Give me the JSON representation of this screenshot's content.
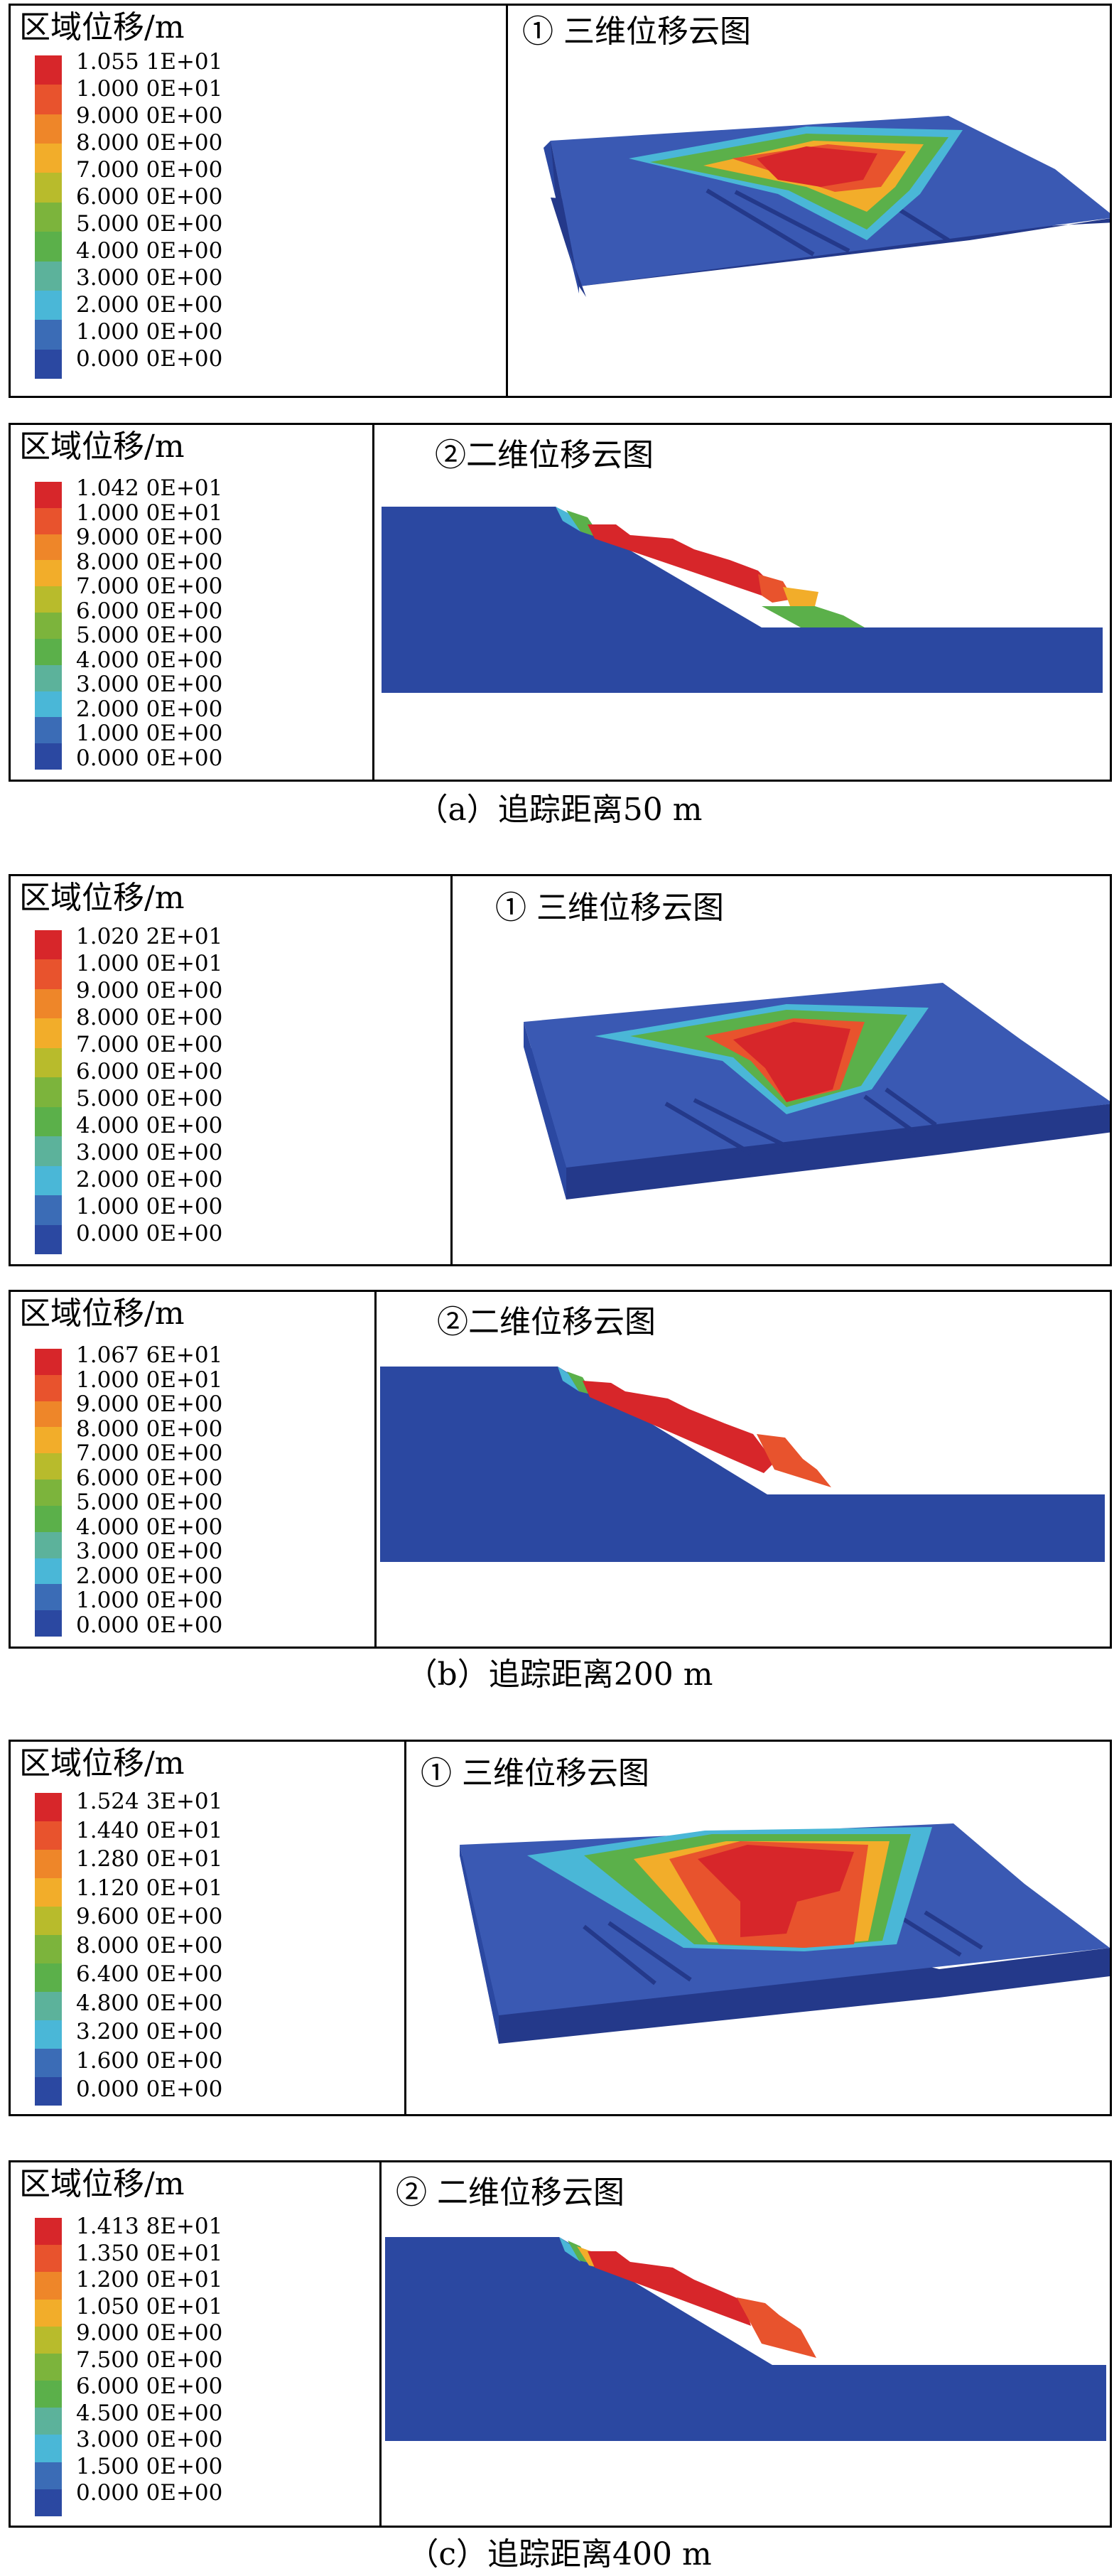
{
  "legend_title": "区域位移/m",
  "colorscale": [
    "#d7262a",
    "#e8532d",
    "#ee8629",
    "#f2ad2a",
    "#b8bb2c",
    "#7cb43c",
    "#5bb04a",
    "#5cb29b",
    "#4ab7d7",
    "#3b6cb6",
    "#2b48a1"
  ],
  "colors": {
    "blue": "#2b48a1",
    "blue_top": "#3a59b3",
    "blue_dark": "#24398a",
    "blue_light": "#4a6ec0",
    "cyan": "#4ab7d7",
    "green": "#5bb04a",
    "yellow": "#f2ad2a",
    "orange": "#e8532d",
    "red": "#d7262a"
  },
  "groups": [
    {
      "caption": "（a）追踪距离50 m",
      "panels": [
        {
          "title": "① 三维位移云图",
          "labels": [
            "1.055 1E+01",
            "1.000 0E+01",
            "9.000 0E+00",
            "8.000 0E+00",
            "7.000 0E+00",
            "6.000 0E+00",
            "5.000 0E+00",
            "4.000 0E+00",
            "3.000 0E+00",
            "2.000 0E+00",
            "1.000 0E+00",
            "0.000 0E+00"
          ]
        },
        {
          "title": "②二维位移云图",
          "labels": [
            "1.042 0E+01",
            "1.000 0E+01",
            "9.000 0E+00",
            "8.000 0E+00",
            "7.000 0E+00",
            "6.000 0E+00",
            "5.000 0E+00",
            "4.000 0E+00",
            "3.000 0E+00",
            "2.000 0E+00",
            "1.000 0E+00",
            "0.000 0E+00"
          ]
        }
      ]
    },
    {
      "caption": "（b）追踪距离200 m",
      "panels": [
        {
          "title": "① 三维位移云图",
          "labels": [
            "1.020 2E+01",
            "1.000 0E+01",
            "9.000 0E+00",
            "8.000 0E+00",
            "7.000 0E+00",
            "6.000 0E+00",
            "5.000 0E+00",
            "4.000 0E+00",
            "3.000 0E+00",
            "2.000 0E+00",
            "1.000 0E+00",
            "0.000 0E+00"
          ]
        },
        {
          "title": "②二维位移云图",
          "labels": [
            "1.067 6E+01",
            "1.000 0E+01",
            "9.000 0E+00",
            "8.000 0E+00",
            "7.000 0E+00",
            "6.000 0E+00",
            "5.000 0E+00",
            "4.000 0E+00",
            "3.000 0E+00",
            "2.000 0E+00",
            "1.000 0E+00",
            "0.000 0E+00"
          ]
        }
      ]
    },
    {
      "caption": "（c）追踪距离400 m",
      "panels": [
        {
          "title": "① 三维位移云图",
          "labels": [
            "1.524 3E+01",
            "1.440 0E+01",
            "1.280 0E+01",
            "1.120 0E+01",
            "9.600 0E+00",
            "8.000 0E+00",
            "6.400 0E+00",
            "4.800 0E+00",
            "3.200 0E+00",
            "1.600 0E+00",
            "0.000 0E+00"
          ]
        },
        {
          "title": "② 二维位移云图",
          "labels": [
            "1.413 8E+01",
            "1.350 0E+01",
            "1.200 0E+01",
            "1.050 0E+01",
            "9.000 0E+00",
            "7.500 0E+00",
            "6.000 0E+00",
            "4.500 0E+00",
            "3.000 0E+00",
            "1.500 0E+00",
            "0.000 0E+00"
          ]
        }
      ]
    }
  ]
}
